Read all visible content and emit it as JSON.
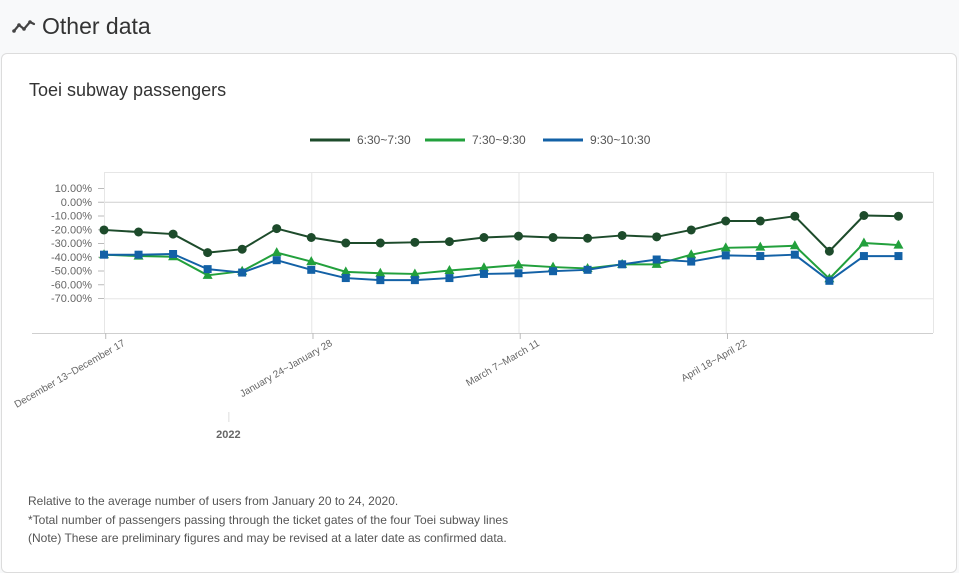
{
  "section": {
    "title": "Other data",
    "icon": "line-chart-icon"
  },
  "card": {
    "title": "Toei subway passengers"
  },
  "chart_data": {
    "type": "line",
    "title": "Toei subway passengers",
    "legend_position": "top",
    "grid": true,
    "y_tick_labels": [
      "10.00%",
      "0.00%",
      "-10.00%",
      "-20.00%",
      "-30.00%",
      "-40.00%",
      "-50.00%",
      "-60.00%",
      "-70.00%"
    ],
    "ylim": [
      -70,
      10
    ],
    "x_tick_labels": [
      {
        "index": 0,
        "label": "December 13~December 17"
      },
      {
        "index": 6,
        "label": "January 24~January 28"
      },
      {
        "index": 12,
        "label": "March 7~March 11"
      },
      {
        "index": 18,
        "label": "April 18~April 22"
      }
    ],
    "x_group_label": {
      "index": 3.6,
      "label": "2022"
    },
    "series": [
      {
        "name": "6:30~7:30",
        "color": "#1d4b2b",
        "marker": "circle",
        "values": [
          -20.5,
          -22,
          -23.5,
          -37,
          -34.5,
          -19.5,
          -26,
          -30,
          -30,
          -29.5,
          -29,
          -26,
          -25,
          -26,
          -26.5,
          -24.5,
          -25.5,
          -20.5,
          -14,
          -14,
          -10.5,
          -36,
          -10,
          -10.5
        ]
      },
      {
        "name": "7:30~9:30",
        "color": "#22a03c",
        "marker": "triangle",
        "values": [
          -38.5,
          -39.5,
          -40,
          -53.5,
          -50.5,
          -37,
          -43.5,
          -51,
          -52,
          -52.5,
          -50,
          -48,
          -46,
          -47.5,
          -48.5,
          -45.5,
          -45.5,
          -38.5,
          -33.5,
          -33,
          -32,
          -56,
          -30,
          -31.5
        ]
      },
      {
        "name": "9:30~10:30",
        "color": "#1361a6",
        "marker": "square",
        "values": [
          -38.5,
          -38.5,
          -38,
          -49,
          -51.5,
          -42.5,
          -49.5,
          -55.5,
          -57,
          -57,
          -55.5,
          -52.5,
          -52,
          -50.5,
          -49.5,
          -45.5,
          -42,
          -43.5,
          -39,
          -39.5,
          -38.5,
          -57.5,
          -39.5,
          -39.5
        ]
      }
    ]
  },
  "notes": [
    "Relative to the average number of users from January 20 to 24, 2020.",
    "*Total number of passengers passing through the ticket gates of the four Toei subway lines",
    "(Note) These are preliminary figures and may be revised at a later date as confirmed data."
  ]
}
